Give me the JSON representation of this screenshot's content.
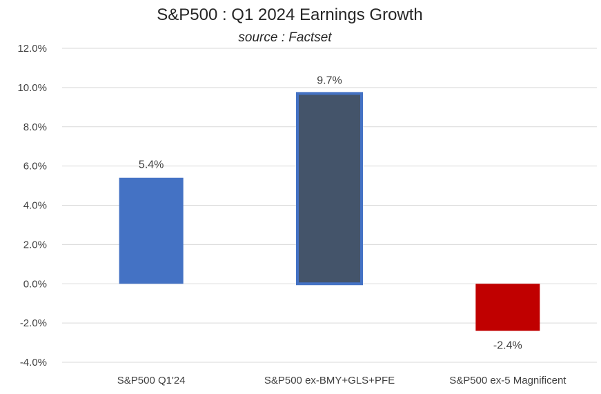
{
  "chart_data": {
    "type": "bar",
    "title": "S&P500 : Q1 2024 Earnings Growth",
    "subtitle": "source : Factset",
    "categories": [
      "S&P500 Q1'24",
      "S&P500 ex-BMY+GLS+PFE",
      "S&P500 ex-5 Magnificent"
    ],
    "values": [
      5.4,
      9.7,
      -2.4
    ],
    "data_labels": [
      "5.4%",
      "9.7%",
      "-2.4%"
    ],
    "bar_colors": [
      "#4472c4",
      "#44546a",
      "#c00000"
    ],
    "accent_color": "#4472c4",
    "ylim": [
      -4,
      12
    ],
    "yticks": [
      12,
      10,
      8,
      6,
      4,
      2,
      0,
      -2,
      -4
    ],
    "ytick_labels": [
      "12.0%",
      "10.0%",
      "8.0%",
      "6.0%",
      "4.0%",
      "2.0%",
      "0.0%",
      "-2.0%",
      "-4.0%"
    ],
    "grid": true,
    "legend": "none"
  }
}
